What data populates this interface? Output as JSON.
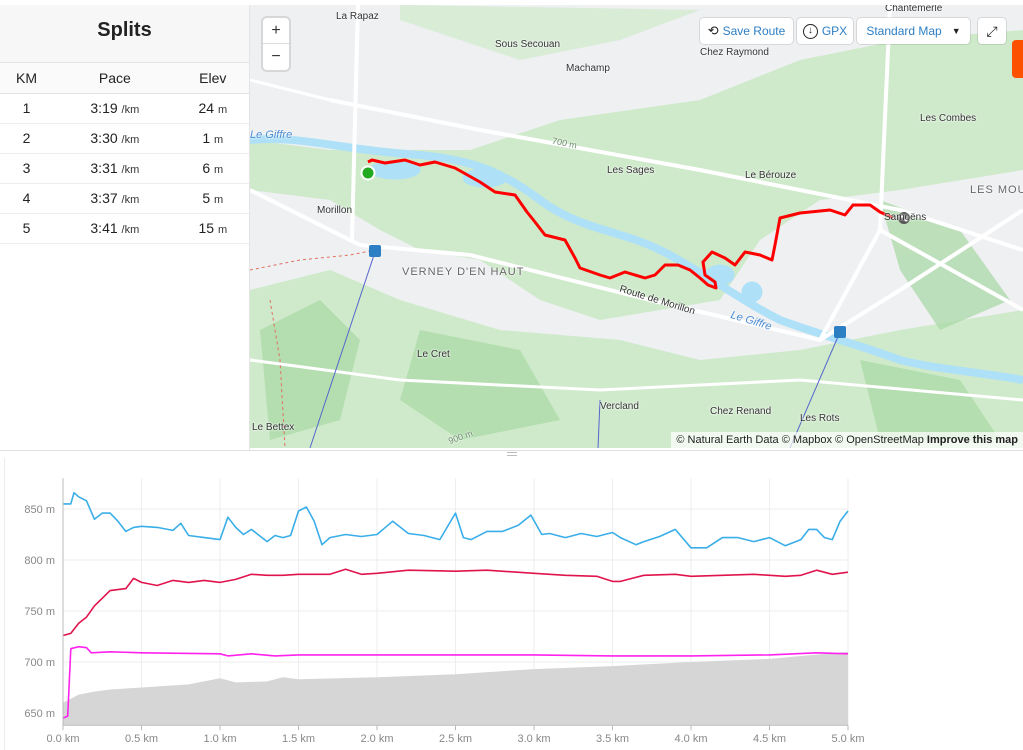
{
  "splits": {
    "title": "Splits",
    "headers": [
      "KM",
      "Pace",
      "Elev"
    ],
    "rows": [
      {
        "km": "1",
        "pace": "3:19",
        "pace_unit": "/km",
        "elev": "24",
        "elev_unit": "m"
      },
      {
        "km": "2",
        "pace": "3:30",
        "pace_unit": "/km",
        "elev": "1",
        "elev_unit": "m"
      },
      {
        "km": "3",
        "pace": "3:31",
        "pace_unit": "/km",
        "elev": "6",
        "elev_unit": "m"
      },
      {
        "km": "4",
        "pace": "3:37",
        "pace_unit": "/km",
        "elev": "5",
        "elev_unit": "m"
      },
      {
        "km": "5",
        "pace": "3:41",
        "pace_unit": "/km",
        "elev": "15",
        "elev_unit": "m"
      }
    ]
  },
  "map": {
    "controls": {
      "zoom_in": "+",
      "zoom_out": "−",
      "save_route": "Save Route",
      "gpx": "GPX",
      "map_style": "Standard Map",
      "fullscreen_icon": "fullscreen-icon"
    },
    "labels": {
      "la_rapaz": "La Rapaz",
      "chantemerle": "Chantemerle",
      "sous_secouan": "Sous Secouan",
      "chez_raymond": "Chez Raymond",
      "machamp": "Machamp",
      "les_combes": "Les Combes",
      "le_giffre_1": "Le Giffre",
      "c700": "700 m",
      "les_sages": "Les Sages",
      "le_berouze": "Le Bérouze",
      "les_moulins": "LES MOULINS",
      "samoens": "Samoëns",
      "morillon": "Morillon",
      "verney": "VERNEY D'EN HAUT",
      "route_morillon": "Route de Morillon",
      "le_giffre_2": "Le Giffre",
      "le_cret": "Le Cret",
      "vercland": "Vercland",
      "chez_renand": "Chez Renand",
      "les_rots": "Les Rots",
      "le_bettex": "Le Bettex",
      "c900": "900 m"
    },
    "attribution": {
      "text": "© Natural Earth Data © Mapbox © OpenStreetMap",
      "link": "Improve this map"
    },
    "colors": {
      "route": "#ff0000",
      "start": "#22aa22",
      "water": "#aee0f7",
      "forest": "#c9e9c4"
    }
  },
  "chart_data": {
    "type": "line",
    "xlabel": "",
    "ylabel": "",
    "xlim": [
      0,
      5.0
    ],
    "ylim": [
      638,
      880
    ],
    "x_ticks": [
      "0.0 km",
      "0.5 km",
      "1.0 km",
      "1.5 km",
      "2.0 km",
      "2.5 km",
      "3.0 km",
      "3.5 km",
      "4.0 km",
      "4.5 km",
      "5.0 km"
    ],
    "x_tick_values": [
      0,
      0.5,
      1.0,
      1.5,
      2.0,
      2.5,
      3.0,
      3.5,
      4.0,
      4.5,
      5.0
    ],
    "y_ticks": [
      "650 m",
      "700 m",
      "750 m",
      "800 m",
      "850 m"
    ],
    "y_tick_values": [
      650,
      700,
      750,
      800,
      850
    ],
    "grid": true,
    "series": [
      {
        "name": "blue",
        "color": "#3aaee8",
        "kind": "line",
        "x": [
          0,
          0.05,
          0.07,
          0.1,
          0.15,
          0.2,
          0.25,
          0.3,
          0.35,
          0.4,
          0.45,
          0.5,
          0.6,
          0.7,
          0.75,
          0.8,
          0.9,
          1.0,
          1.05,
          1.1,
          1.15,
          1.2,
          1.3,
          1.35,
          1.4,
          1.45,
          1.5,
          1.55,
          1.6,
          1.65,
          1.7,
          1.8,
          1.9,
          2.0,
          2.1,
          2.2,
          2.3,
          2.4,
          2.5,
          2.55,
          2.6,
          2.7,
          2.8,
          2.9,
          2.98,
          3.05,
          3.1,
          3.2,
          3.3,
          3.4,
          3.5,
          3.55,
          3.65,
          3.7,
          3.8,
          3.9,
          4.0,
          4.1,
          4.2,
          4.3,
          4.4,
          4.5,
          4.6,
          4.7,
          4.75,
          4.8,
          4.85,
          4.9,
          4.95,
          5.0
        ],
        "y": [
          855,
          855,
          866,
          862,
          858,
          840,
          846,
          846,
          838,
          828,
          832,
          833,
          832,
          829,
          836,
          824,
          822,
          820,
          842,
          832,
          825,
          830,
          818,
          824,
          822,
          824,
          848,
          852,
          838,
          815,
          822,
          825,
          823,
          825,
          838,
          826,
          824,
          820,
          846,
          822,
          820,
          828,
          828,
          834,
          844,
          825,
          826,
          822,
          826,
          823,
          827,
          822,
          815,
          818,
          823,
          830,
          812,
          812,
          822,
          822,
          818,
          822,
          814,
          820,
          830,
          830,
          822,
          820,
          838,
          848
        ]
      },
      {
        "name": "red",
        "color": "#e0144c",
        "kind": "line",
        "x": [
          0,
          0.05,
          0.1,
          0.15,
          0.2,
          0.3,
          0.35,
          0.4,
          0.45,
          0.5,
          0.6,
          0.7,
          0.8,
          0.9,
          1.0,
          1.1,
          1.2,
          1.3,
          1.4,
          1.5,
          1.7,
          1.8,
          1.9,
          2.0,
          2.2,
          2.5,
          2.7,
          3.0,
          3.2,
          3.4,
          3.5,
          3.55,
          3.7,
          3.9,
          4.0,
          4.2,
          4.4,
          4.6,
          4.7,
          4.8,
          4.9,
          5.0
        ],
        "y": [
          726,
          728,
          738,
          744,
          755,
          770,
          771,
          772,
          782,
          778,
          775,
          780,
          778,
          780,
          778,
          781,
          786,
          785,
          785,
          786,
          786,
          791,
          786,
          787,
          790,
          789,
          790,
          787,
          785,
          784,
          779,
          779,
          785,
          786,
          784,
          785,
          786,
          784,
          785,
          790,
          786,
          788
        ]
      },
      {
        "name": "magenta",
        "color": "#ff22ee",
        "kind": "line",
        "x": [
          0,
          0.03,
          0.05,
          0.1,
          0.15,
          0.18,
          0.3,
          0.5,
          1.0,
          1.05,
          1.2,
          1.35,
          1.5,
          2.0,
          2.5,
          3.0,
          3.5,
          4.0,
          4.5,
          4.8,
          5.0
        ],
        "y": [
          645,
          647,
          713,
          715,
          714,
          709,
          710,
          709,
          708,
          706,
          708,
          706,
          707,
          707,
          707,
          707,
          706,
          706,
          707,
          709,
          708
        ]
      },
      {
        "name": "gray",
        "color": "#d6d6d6",
        "kind": "area",
        "x": [
          0,
          0.05,
          0.1,
          0.2,
          0.3,
          0.5,
          0.8,
          1.0,
          1.1,
          1.3,
          1.4,
          1.5,
          2.0,
          2.5,
          3.0,
          3.5,
          4.0,
          4.5,
          5.0
        ],
        "y": [
          660,
          664,
          668,
          671,
          673,
          675,
          678,
          684,
          680,
          681,
          685,
          683,
          685,
          688,
          693,
          696,
          700,
          703,
          710
        ]
      }
    ]
  }
}
